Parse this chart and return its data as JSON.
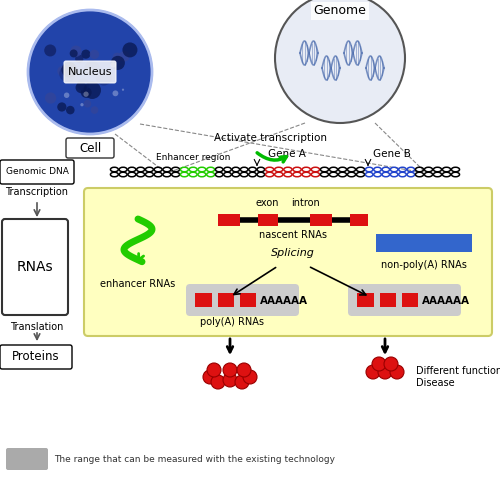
{
  "bg_color": "#ffffff",
  "cell_label": "Cell",
  "nucleus_label": "Nucleus",
  "genome_label": "Genome",
  "activate_label": "Activate transcription",
  "enhancer_region_label": "Enhancer region",
  "gene_a_label": "Gene A",
  "gene_b_label": "Gene B",
  "genomic_dna_label": "Genomic DNA",
  "transcription_label": "Transcription",
  "rna_label": "RNAs",
  "translation_label": "Translation",
  "proteins_label": "Proteins",
  "exon_label": "exon",
  "intron_label": "intron",
  "nascent_label": "nascent RNAs",
  "enhancer_rna_label": "enhancer RNAs",
  "splicing_label": "Splicing",
  "non_polya_label": "non-poly(A) RNAs",
  "polya_label": "poly(A) RNAs",
  "diff_func_label": "Different functions",
  "disease_label": "Disease",
  "bottom_label": "The range that can be measured with the existing technology",
  "red": "#dd1111",
  "green": "#22cc00",
  "blue": "#3366cc",
  "black": "#111111",
  "light_gray": "#cccccc",
  "yellow_bg": "#ffffc8"
}
